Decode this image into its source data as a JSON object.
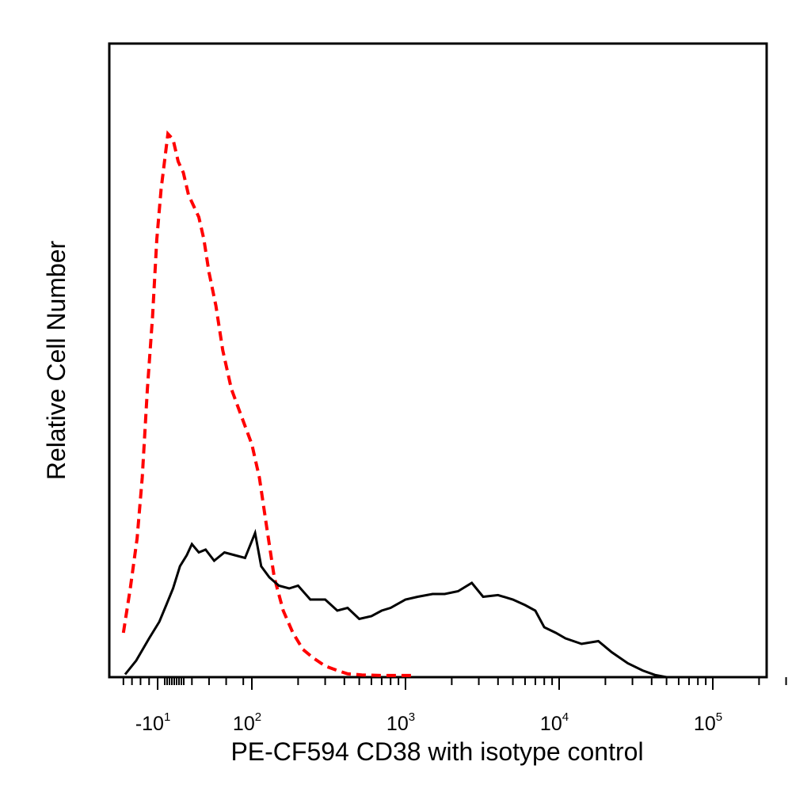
{
  "chart_data": {
    "type": "line",
    "title": "",
    "xlabel": "PE-CF594 CD38 with isotype control",
    "ylabel": "Relative Cell Number",
    "x_scale": "biexponential",
    "xlim": [
      -60,
      300000
    ],
    "ylim": [
      0,
      1
    ],
    "grid": false,
    "legend": "none",
    "x_tick_labels": [
      {
        "value": -10,
        "base": "-10",
        "exp": "1"
      },
      {
        "value": 100,
        "base": "10",
        "exp": "2"
      },
      {
        "value": 1000,
        "base": "10",
        "exp": "3"
      },
      {
        "value": 10000,
        "base": "10",
        "exp": "4"
      },
      {
        "value": 100000,
        "base": "10",
        "exp": "5"
      }
    ],
    "series": [
      {
        "color": "#ff0000",
        "style": "dashed",
        "x": [
          -50,
          -42,
          -34,
          -28,
          -22,
          -16,
          -11,
          -6,
          -2,
          2,
          8,
          14,
          20,
          26,
          32,
          38,
          44,
          50,
          58,
          66,
          76,
          88,
          100,
          112,
          125,
          140,
          160,
          185,
          215,
          250,
          300,
          360,
          420,
          520,
          700,
          1000,
          1100
        ],
        "y": [
          0.08,
          0.16,
          0.25,
          0.36,
          0.52,
          0.65,
          0.79,
          0.88,
          0.93,
          0.98,
          0.97,
          0.93,
          0.91,
          0.87,
          0.85,
          0.83,
          0.79,
          0.73,
          0.67,
          0.59,
          0.52,
          0.47,
          0.42,
          0.36,
          0.27,
          0.18,
          0.12,
          0.08,
          0.05,
          0.035,
          0.02,
          0.012,
          0.006,
          0.004,
          0.003,
          0.003,
          0.003
        ]
      },
      {
        "color": "#000000",
        "style": "solid",
        "x": [
          -48,
          -35,
          -20,
          -8,
          0,
          8,
          16,
          24,
          30,
          38,
          46,
          56,
          68,
          80,
          92,
          105,
          115,
          130,
          150,
          175,
          200,
          240,
          300,
          360,
          420,
          500,
          600,
          700,
          800,
          1000,
          1200,
          1500,
          1800,
          2200,
          2700,
          3200,
          4000,
          5000,
          6000,
          7000,
          8000,
          9500,
          11000,
          14000,
          18000,
          22000,
          28000,
          35000,
          42000,
          50000
        ],
        "y": [
          0.005,
          0.03,
          0.07,
          0.1,
          0.13,
          0.16,
          0.2,
          0.22,
          0.24,
          0.225,
          0.23,
          0.21,
          0.225,
          0.22,
          0.215,
          0.26,
          0.2,
          0.18,
          0.165,
          0.16,
          0.165,
          0.14,
          0.14,
          0.12,
          0.125,
          0.105,
          0.11,
          0.12,
          0.125,
          0.14,
          0.145,
          0.15,
          0.15,
          0.155,
          0.17,
          0.145,
          0.148,
          0.14,
          0.13,
          0.12,
          0.09,
          0.08,
          0.07,
          0.06,
          0.065,
          0.045,
          0.025,
          0.012,
          0.004,
          0.0
        ]
      }
    ]
  }
}
